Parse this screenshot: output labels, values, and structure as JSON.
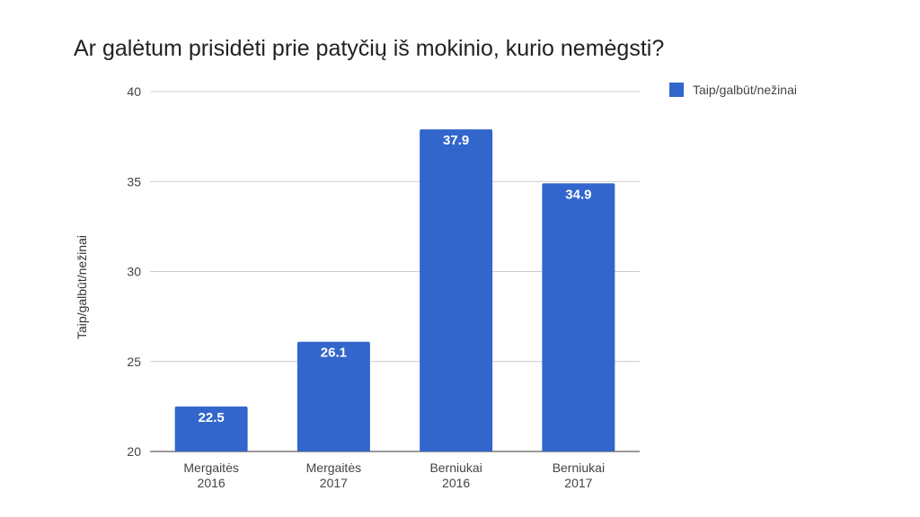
{
  "chart_data": {
    "type": "bar",
    "title": "Ar galėtum prisidėti prie patyčių iš mokinio, kurio nemėgsti?",
    "xlabel": "",
    "ylabel": "Taip/galbūt/nežinai",
    "ylim": [
      20,
      40
    ],
    "yticks": [
      20,
      25,
      30,
      35,
      40
    ],
    "categories": [
      [
        "Mergaitės",
        "2016"
      ],
      [
        "Mergaitės",
        "2017"
      ],
      [
        "Berniukai",
        "2016"
      ],
      [
        "Berniukai",
        "2017"
      ]
    ],
    "series": [
      {
        "name": "Taip/galbūt/nežinai",
        "color": "#3366cc",
        "values": [
          22.5,
          26.1,
          37.9,
          34.9
        ],
        "labels": [
          "22.5",
          "26.1",
          "37.9",
          "34.9"
        ]
      }
    ],
    "grid": true,
    "legend_position": "top-right"
  }
}
